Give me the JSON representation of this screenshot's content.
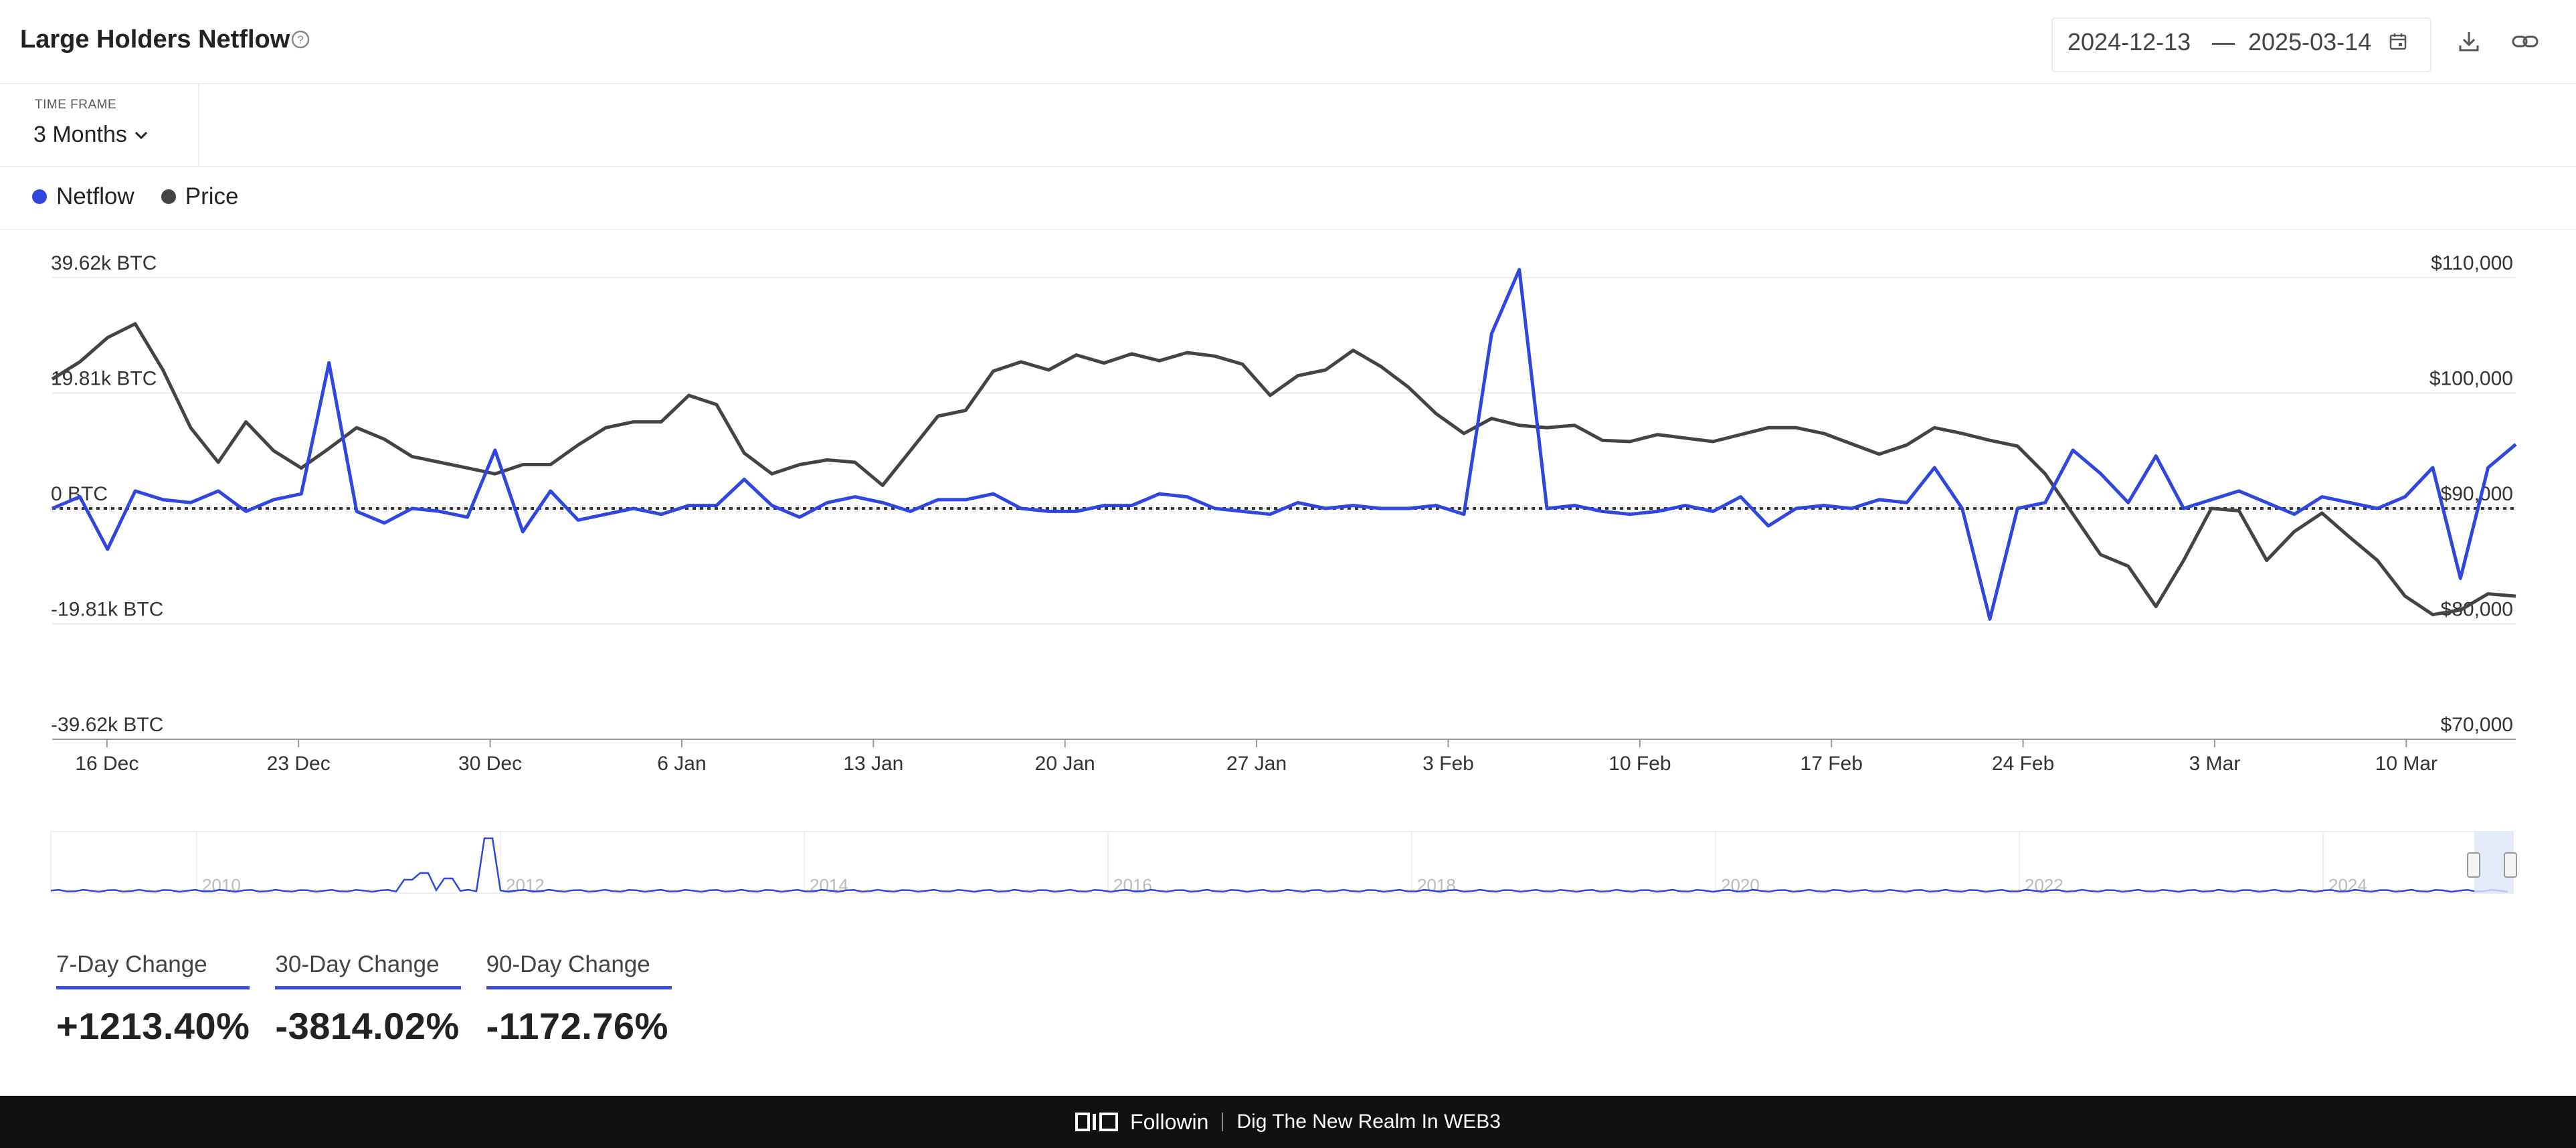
{
  "header": {
    "title": "Large Holders Netflow",
    "date_start": "2024-12-13",
    "date_end": "2025-03-14"
  },
  "timeframe": {
    "label": "TIME FRAME",
    "value": "3 Months"
  },
  "legend": [
    {
      "name": "Netflow",
      "color": "#2f47e0"
    },
    {
      "name": "Price",
      "color": "#444444"
    }
  ],
  "colors": {
    "netflow": "#2f47e0",
    "price": "#444444"
  },
  "chart_data": {
    "type": "line",
    "title": "Large Holders Netflow",
    "y_left_ticks": [
      "39.62k BTC",
      "19.81k BTC",
      "0 BTC",
      "-19.81k BTC",
      "-39.62k BTC"
    ],
    "y_left_range": [
      -39.62,
      39.62
    ],
    "y_left_unit": "k BTC",
    "y_right_ticks": [
      "$110,000",
      "$100,000",
      "$90,000",
      "$80,000",
      "$70,000"
    ],
    "y_right_range": [
      70000,
      110000
    ],
    "x_ticks": [
      "16 Dec",
      "23 Dec",
      "30 Dec",
      "6 Jan",
      "13 Jan",
      "20 Jan",
      "27 Jan",
      "3 Feb",
      "10 Feb",
      "17 Feb",
      "24 Feb",
      "3 Mar",
      "10 Mar"
    ],
    "x_start": "2024-12-14",
    "x_end": "2025-03-14",
    "grid": true,
    "series": [
      {
        "name": "Netflow",
        "axis": "left",
        "values": [
          0,
          2,
          -7,
          3,
          1.5,
          1,
          3,
          -0.5,
          1.5,
          2.5,
          25,
          -0.5,
          -2.5,
          0,
          -0.5,
          -1.5,
          10,
          -4,
          3,
          -2,
          -1,
          0,
          -1,
          0.5,
          0.5,
          5,
          0.5,
          -1.5,
          1,
          2,
          1,
          -0.5,
          1.5,
          1.5,
          2.5,
          0,
          -0.5,
          -0.5,
          0.5,
          0.5,
          2.5,
          2,
          0,
          -0.5,
          -1,
          1,
          0,
          0.5,
          0,
          0,
          0.5,
          -1,
          30,
          41,
          0,
          0.5,
          -0.5,
          -1,
          -0.5,
          0.5,
          -0.5,
          2,
          -3,
          0,
          0.5,
          0,
          1.5,
          1,
          7,
          0,
          -19,
          0,
          1,
          10,
          6,
          1,
          9,
          0,
          1.5,
          3,
          1,
          -1,
          2,
          1,
          0,
          2,
          7,
          -12,
          7,
          11
        ]
      },
      {
        "name": "Price",
        "axis": "right",
        "values": [
          101200,
          102700,
          104800,
          106000,
          102000,
          97000,
          94000,
          97500,
          95000,
          93500,
          95200,
          97000,
          96000,
          94500,
          94000,
          93500,
          93000,
          93800,
          93800,
          95500,
          97000,
          97500,
          97500,
          99800,
          99000,
          94800,
          93000,
          93800,
          94200,
          94000,
          92000,
          95000,
          98000,
          98500,
          101900,
          102700,
          102000,
          103300,
          102600,
          103400,
          102800,
          103500,
          103200,
          102500,
          99800,
          101500,
          102000,
          103700,
          102300,
          100500,
          98200,
          96500,
          97800,
          97200,
          97000,
          97200,
          95900,
          95800,
          96400,
          96100,
          95800,
          96400,
          97000,
          97000,
          96500,
          95600,
          94700,
          95500,
          97000,
          96500,
          95900,
          95400,
          93000,
          89500,
          86000,
          85000,
          81500,
          85500,
          90000,
          89800,
          85500,
          88000,
          89600,
          87500,
          85500,
          82400,
          80800,
          81200,
          82600,
          82400
        ]
      }
    ]
  },
  "overview": {
    "year_labels": [
      "2010",
      "2012",
      "2014",
      "2016",
      "2018",
      "2020",
      "2022",
      "2024"
    ]
  },
  "changes": [
    {
      "label": "7-Day Change",
      "value": "+1213.40%"
    },
    {
      "label": "30-Day Change",
      "value": "-3814.02%"
    },
    {
      "label": "90-Day Change",
      "value": "-1172.76%"
    }
  ],
  "footer": {
    "brand": "Followin",
    "slogan": "Dig The New Realm In WEB3"
  }
}
